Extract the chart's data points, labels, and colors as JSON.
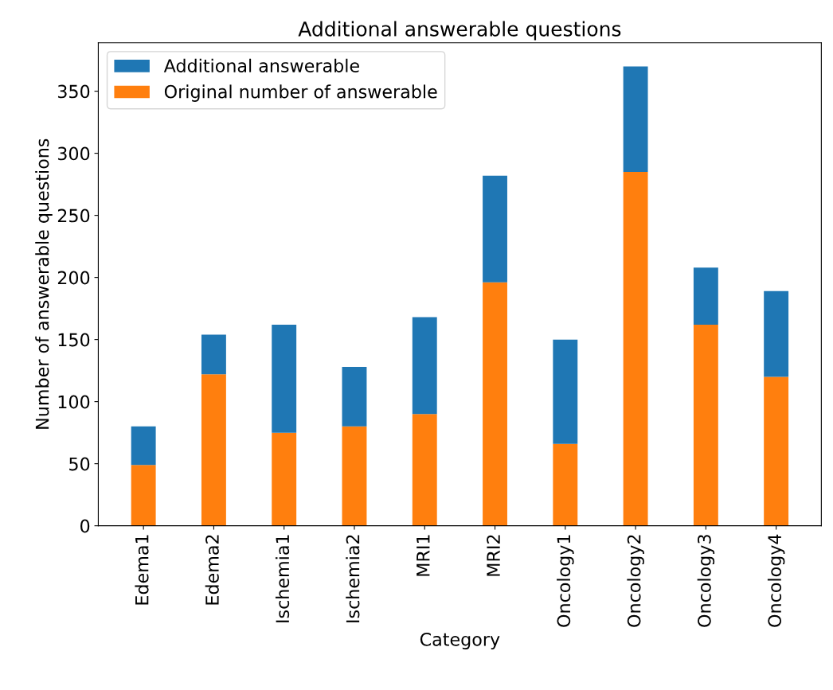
{
  "chart_data": {
    "type": "bar",
    "title": "Additional answerable questions",
    "xlabel": "Category",
    "ylabel": "Number of answerable questions",
    "categories": [
      "Edema1",
      "Edema2",
      "Ischemia1",
      "Ischemia2",
      "MRI1",
      "MRI2",
      "Oncology1",
      "Oncology2",
      "Oncology3",
      "Oncology4"
    ],
    "stacked": true,
    "series": [
      {
        "name": "Original number of answerable",
        "color": "#ff7f0e",
        "values": [
          49,
          122,
          75,
          80,
          90,
          196,
          66,
          285,
          162,
          120
        ]
      },
      {
        "name": "Additional answerable",
        "color": "#1f77b4",
        "values": [
          31,
          32,
          87,
          48,
          78,
          86,
          84,
          85,
          46,
          69
        ]
      }
    ],
    "ylim": [
      0,
      389
    ],
    "yticks": [
      0,
      50,
      100,
      150,
      200,
      250,
      300,
      350
    ],
    "grid": false,
    "legend": "top left"
  }
}
